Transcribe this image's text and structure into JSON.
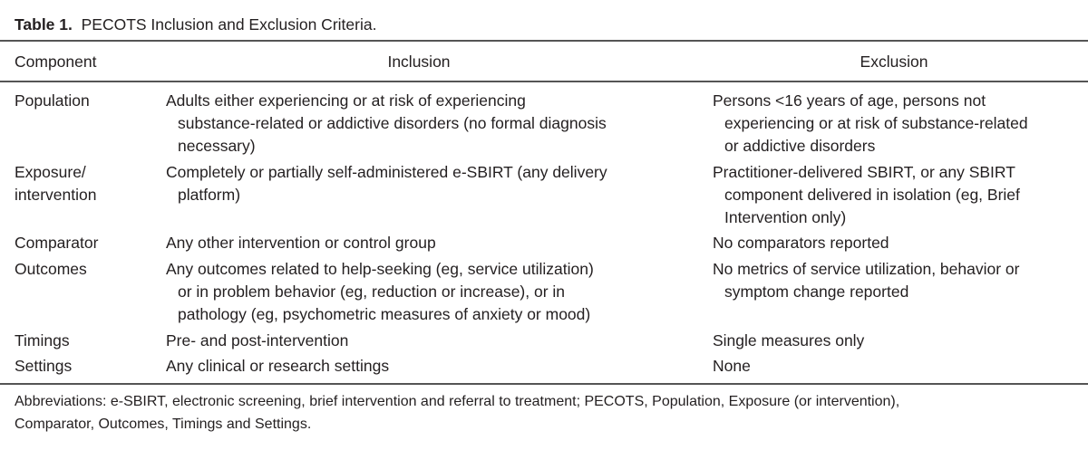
{
  "caption": {
    "label": "Table 1.",
    "text": "PECOTS Inclusion and Exclusion Criteria."
  },
  "table": {
    "headers": [
      "Component",
      "Inclusion",
      "Exclusion"
    ],
    "rows": [
      {
        "component": [
          "Population"
        ],
        "inclusion": [
          "Adults either experiencing or at risk of experiencing",
          "substance-related or addictive disorders (no formal diagnosis",
          "necessary)"
        ],
        "exclusion": [
          "Persons <16 years of age, persons not",
          "experiencing or at risk of substance-related",
          "or addictive disorders"
        ]
      },
      {
        "component": [
          "Exposure/",
          "intervention"
        ],
        "inclusion": [
          "Completely or partially self-administered e-SBIRT (any delivery",
          "platform)"
        ],
        "exclusion": [
          "Practitioner-delivered SBIRT, or any SBIRT",
          "component delivered in isolation (eg, Brief",
          "Intervention only)"
        ]
      },
      {
        "component": [
          "Comparator"
        ],
        "inclusion": [
          "Any other intervention or control group"
        ],
        "exclusion": [
          "No comparators reported"
        ]
      },
      {
        "component": [
          "Outcomes"
        ],
        "inclusion": [
          "Any outcomes related to help-seeking (eg, service utilization)",
          "or in problem behavior (eg, reduction or increase), or in",
          "pathology (eg, psychometric measures of anxiety or mood)"
        ],
        "exclusion": [
          "No metrics of service utilization, behavior or",
          "symptom change reported"
        ]
      },
      {
        "component": [
          "Timings"
        ],
        "inclusion": [
          "Pre- and post-intervention"
        ],
        "exclusion": [
          "Single measures only"
        ]
      },
      {
        "component": [
          "Settings"
        ],
        "inclusion": [
          "Any clinical or research settings"
        ],
        "exclusion": [
          "None"
        ]
      }
    ]
  },
  "footnote": [
    "Abbreviations: e-SBIRT, electronic screening, brief intervention and referral to treatment; PECOTS, Population, Exposure (or intervention),",
    "Comparator, Outcomes, Timings and Settings."
  ]
}
